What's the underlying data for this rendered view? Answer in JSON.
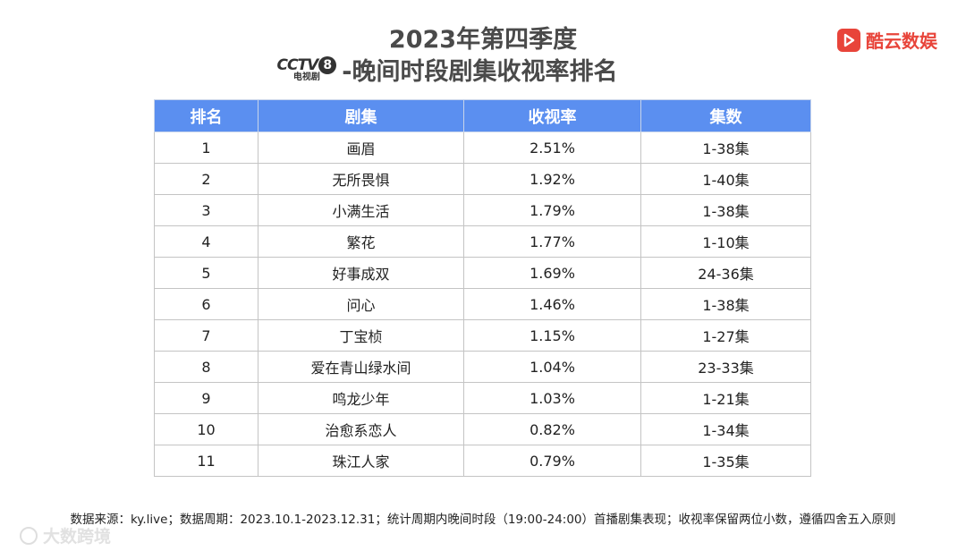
{
  "title": {
    "line1": "2023年第四季度",
    "logo_word": "CCTV",
    "logo_number": "8",
    "logo_sub": "电视剧",
    "line2": "-晚间时段剧集收视率排名"
  },
  "brand": {
    "name": "酷云数娱",
    "icon": "play-icon",
    "color": "#e8443a"
  },
  "table": {
    "headers": [
      "排名",
      "剧集",
      "收视率",
      "集数"
    ],
    "header_color": "#5b8ff0",
    "rows": [
      [
        "1",
        "画眉",
        "2.51%",
        "1-38集"
      ],
      [
        "2",
        "无所畏惧",
        "1.92%",
        "1-40集"
      ],
      [
        "3",
        "小满生活",
        "1.79%",
        "1-38集"
      ],
      [
        "4",
        "繁花",
        "1.77%",
        "1-10集"
      ],
      [
        "5",
        "好事成双",
        "1.69%",
        "24-36集"
      ],
      [
        "6",
        "问心",
        "1.46%",
        "1-38集"
      ],
      [
        "7",
        "丁宝桢",
        "1.15%",
        "1-27集"
      ],
      [
        "8",
        "爱在青山绿水间",
        "1.04%",
        "23-33集"
      ],
      [
        "9",
        "鸣龙少年",
        "1.03%",
        "1-21集"
      ],
      [
        "10",
        "治愈系恋人",
        "0.82%",
        "1-34集"
      ],
      [
        "11",
        "珠江人家",
        "0.79%",
        "1-35集"
      ]
    ]
  },
  "footnote": "数据来源：ky.live；数据周期：2023.10.1-2023.12.31；统计周期内晚间时段（19:00-24:00）首播剧集表现；收视率保留两位小数，遵循四舍五入原则",
  "watermark": "大数跨境"
}
